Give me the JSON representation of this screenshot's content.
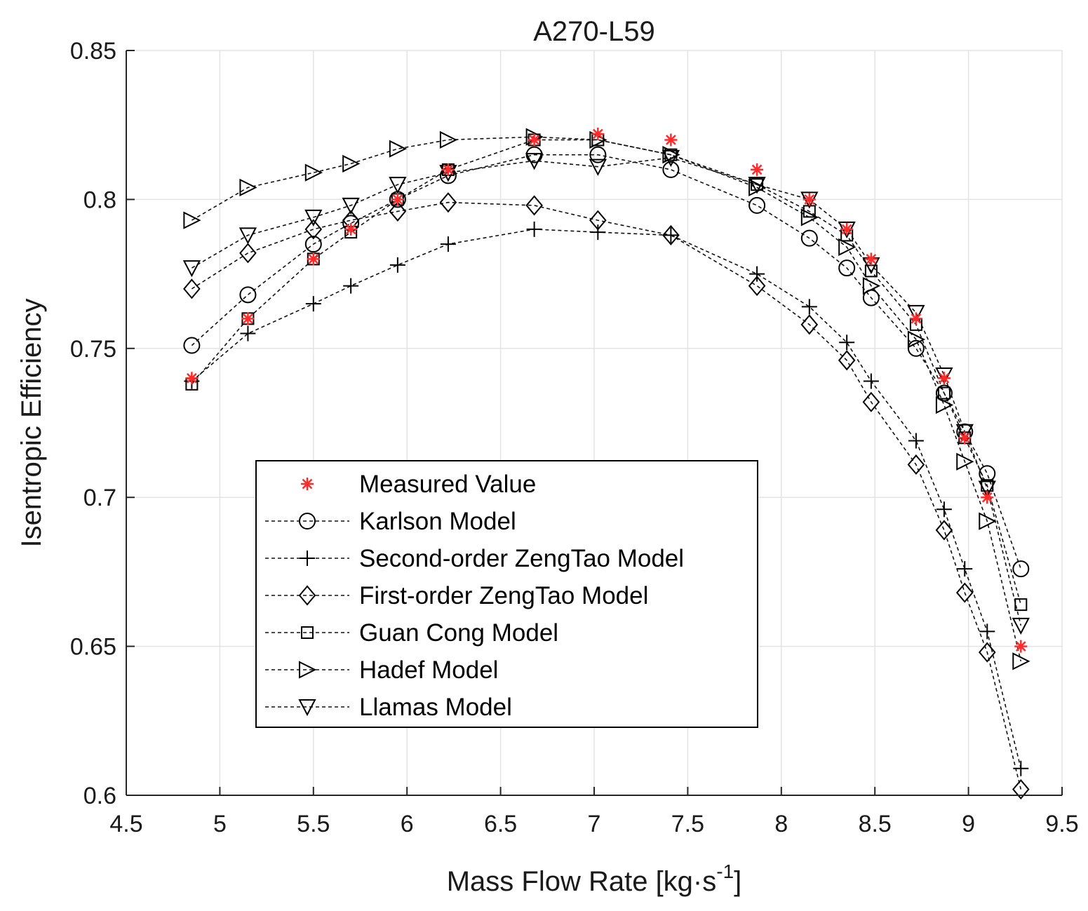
{
  "chart_data": {
    "type": "line",
    "title": "A270-L59",
    "xlabel": "Mass Flow Rate [kg·s",
    "xlabel_sup": "-1",
    "xlabel_end": "]",
    "ylabel": "Isentropic Efficiency",
    "xlim": [
      4.5,
      9.5
    ],
    "ylim": [
      0.6,
      0.85
    ],
    "xticks": [
      4.5,
      5,
      5.5,
      6,
      6.5,
      7,
      7.5,
      8,
      8.5,
      9,
      9.5
    ],
    "xtick_labels": [
      "4.5",
      "5",
      "5.5",
      "6",
      "6.5",
      "7",
      "7.5",
      "8",
      "8.5",
      "9",
      "9.5"
    ],
    "yticks": [
      0.6,
      0.65,
      0.7,
      0.75,
      0.8,
      0.85
    ],
    "ytick_labels": [
      "0.6",
      "0.65",
      "0.7",
      "0.75",
      "0.8",
      "0.85"
    ],
    "grid": true,
    "legend_position": "lower-left",
    "x": [
      4.85,
      5.15,
      5.5,
      5.7,
      5.95,
      6.22,
      6.68,
      7.02,
      7.41,
      7.87,
      8.15,
      8.35,
      8.48,
      8.72,
      8.87,
      8.98,
      9.1,
      9.28
    ],
    "series": [
      {
        "name": "Measured Value",
        "marker": "asterisk",
        "color": "#ff2a2a",
        "line": false,
        "values": [
          0.74,
          0.76,
          0.78,
          0.79,
          0.8,
          0.81,
          0.82,
          0.822,
          0.82,
          0.81,
          0.8,
          0.79,
          0.78,
          0.76,
          0.74,
          0.72,
          0.7,
          0.65
        ]
      },
      {
        "name": "Karlson Model",
        "marker": "circle",
        "color": "#000000",
        "line": true,
        "values": [
          0.751,
          0.768,
          0.785,
          0.792,
          0.8,
          0.808,
          0.815,
          0.815,
          0.81,
          0.798,
          0.787,
          0.777,
          0.767,
          0.75,
          0.735,
          0.722,
          0.708,
          0.676
        ]
      },
      {
        "name": "Second-order ZengTao Model",
        "marker": "plus",
        "color": "#000000",
        "line": true,
        "values": [
          0.739,
          0.755,
          0.765,
          0.771,
          0.778,
          0.785,
          0.79,
          0.789,
          0.788,
          0.775,
          0.764,
          0.752,
          0.739,
          0.719,
          0.696,
          0.676,
          0.655,
          0.609
        ]
      },
      {
        "name": "First-order ZengTao Model",
        "marker": "diamond",
        "color": "#000000",
        "line": true,
        "values": [
          0.77,
          0.782,
          0.79,
          0.793,
          0.796,
          0.799,
          0.798,
          0.793,
          0.788,
          0.771,
          0.758,
          0.746,
          0.732,
          0.711,
          0.689,
          0.668,
          0.648,
          0.602
        ]
      },
      {
        "name": "Guan Cong Model",
        "marker": "square",
        "color": "#000000",
        "line": true,
        "values": [
          0.738,
          0.76,
          0.78,
          0.789,
          0.8,
          0.81,
          0.82,
          0.82,
          0.815,
          0.805,
          0.796,
          0.788,
          0.776,
          0.758,
          0.735,
          0.72,
          0.704,
          0.664
        ]
      },
      {
        "name": "Hadef Model",
        "marker": "triangle-right",
        "color": "#000000",
        "line": true,
        "values": [
          0.793,
          0.804,
          0.809,
          0.812,
          0.817,
          0.82,
          0.821,
          0.82,
          0.815,
          0.804,
          0.794,
          0.784,
          0.771,
          0.753,
          0.731,
          0.712,
          0.692,
          0.645
        ]
      },
      {
        "name": "Llamas Model",
        "marker": "triangle-down",
        "color": "#000000",
        "line": true,
        "values": [
          0.777,
          0.788,
          0.794,
          0.798,
          0.805,
          0.809,
          0.813,
          0.811,
          0.814,
          0.805,
          0.8,
          0.79,
          0.778,
          0.762,
          0.741,
          0.722,
          0.703,
          0.657
        ]
      }
    ]
  }
}
